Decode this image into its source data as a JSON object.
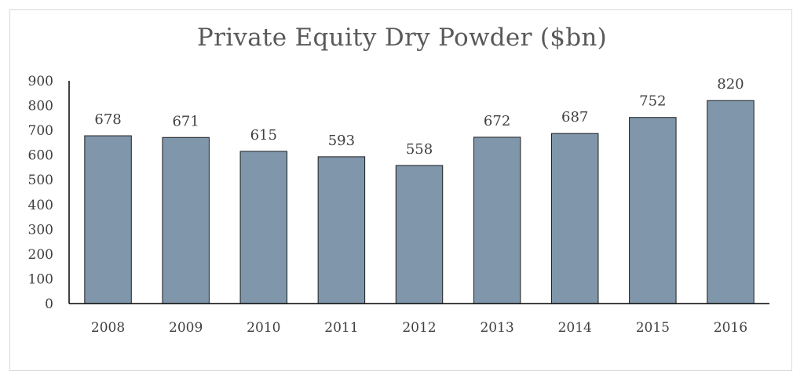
{
  "chart_data": {
    "type": "bar",
    "title": "Private Equity Dry Powder ($bn)",
    "xlabel": "",
    "ylabel": "",
    "categories": [
      "2008",
      "2009",
      "2010",
      "2011",
      "2012",
      "2013",
      "2014",
      "2015",
      "2016"
    ],
    "values": [
      678,
      671,
      615,
      593,
      558,
      672,
      687,
      752,
      820
    ],
    "ylim": [
      0,
      900
    ],
    "yticks": [
      0,
      100,
      200,
      300,
      400,
      500,
      600,
      700,
      800,
      900
    ],
    "data_labels": true,
    "grid": false,
    "legend": "none",
    "colors": {
      "bar_fill": "#7f96ab",
      "bar_stroke": "#1f1f1f",
      "axis": "#000000",
      "text": "#404040",
      "title": "#595959"
    }
  }
}
